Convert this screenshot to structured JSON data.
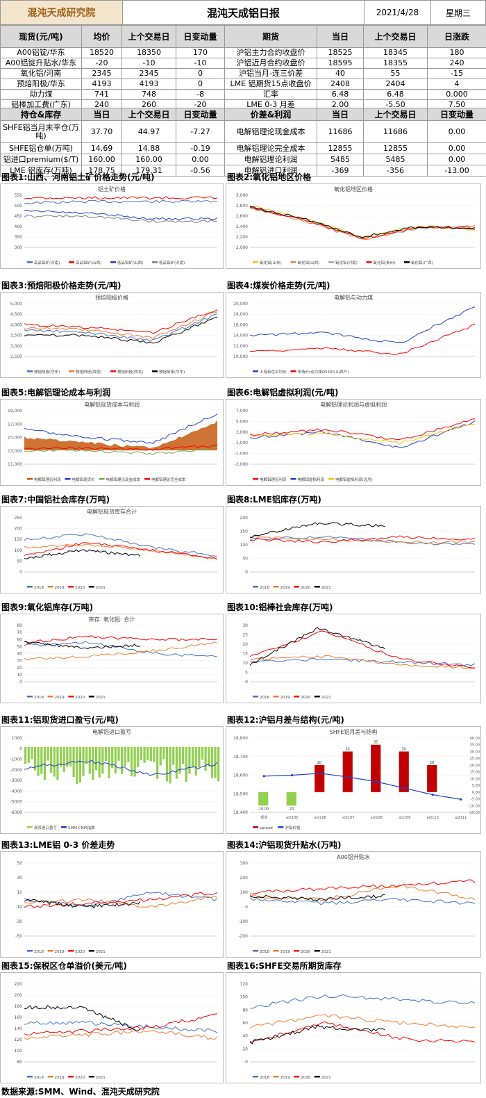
{
  "header": {
    "logo": "混沌天成研究院",
    "title": "混沌天成铝日报",
    "date": "2021/4/28",
    "weekday": "星期三"
  },
  "table1": {
    "headers": [
      "现货(元/吨)",
      "均价",
      "上个交易日",
      "日变动量",
      "期货",
      "当日",
      "上个交易日",
      "日涨跌"
    ],
    "rows": [
      [
        "A00铝锭/华东",
        "18520",
        "18350",
        "170",
        "沪铝主力合约收盘价",
        "18525",
        "18345",
        "180"
      ],
      [
        "A00铝锭升贴水/华东",
        "-20",
        "-10",
        "-10",
        "沪铝近月合约收盘价",
        "18595",
        "18355",
        "240"
      ],
      [
        "氧化铝/河南",
        "2345",
        "2345",
        "0",
        "沪铝当月-连三价差",
        "40",
        "55",
        "-15"
      ],
      [
        "预焙阳极/华东",
        "4193",
        "4193",
        "0",
        "LME 铝期货15点收盘价",
        "2408",
        "2404",
        "4"
      ],
      [
        "动力煤",
        "741",
        "748",
        "-8",
        "汇率",
        "6.48",
        "6.48",
        "0.000"
      ],
      [
        "铝棒加工费(广东)",
        "240",
        "260",
        "-20",
        "LME 0-3 月差",
        "2.00",
        "-5.50",
        "7.50"
      ]
    ]
  },
  "table2": {
    "headers": [
      "持仓&库存",
      "当日",
      "上个交易日",
      "日变动量",
      "价差&利润",
      "当日",
      "上个交易日",
      "日变动量"
    ],
    "rows": [
      [
        "SHFE铝当月末平仓(万吨)",
        "37.70",
        "44.97",
        "-7.27",
        "电解铝理论现金成本",
        "11686",
        "11686",
        "0.00"
      ],
      [
        "SHFE铝仓单(万吨)",
        "14.69",
        "14.88",
        "-0.19",
        "电解铝理论完全成本",
        "12855",
        "12855",
        "0.00"
      ],
      [
        "铝进口premium($/T)",
        "160.00",
        "160.00",
        "0.00",
        "电解铝理论利润",
        "5485",
        "5485",
        "0.00"
      ],
      [
        "LME 铝库存(万吨)",
        "178.75",
        "179.31",
        "-0.56",
        "电解铝进口利润",
        "-369",
        "-356",
        "-13.00"
      ]
    ]
  },
  "panels": [
    {
      "title": "图表1:山西、河南铝土矿价格走势(元/吨)",
      "chart_title": "铝土矿价格",
      "y_ticks": [
        "550",
        "500",
        "450",
        "400",
        "350",
        "300"
      ],
      "legend": [
        "高品铝矿(河南)",
        "高品铝矿(山西)",
        "低品铝矿(山西)",
        "低品铝矿(河南)"
      ],
      "colors": [
        "#4472c4",
        "#ff0000",
        "#1f3fcc",
        "#7f7f7f"
      ]
    },
    {
      "title": "图表2:氧化铝地区价格",
      "chart_title": "氧化铝地区价格",
      "y_ticks": [
        "3,000",
        "2,800",
        "2,600",
        "2,400",
        "2,200",
        "2,000"
      ],
      "legend": [
        "氧化铝(山东)",
        "氧化铝(山西)",
        "氧化铝(河南)",
        "氧化铝(贵州)",
        "氧化铝(广西)"
      ],
      "colors": [
        "#ffc000",
        "#ed7d31",
        "#a5a5a5",
        "#ff0000",
        "#000000"
      ]
    },
    {
      "title": "图表3:预焙阳极价格走势(元/吨)",
      "chart_title": "预焙阳极价格",
      "y_ticks": [
        "5,000",
        "4,500",
        "4,000",
        "3,500",
        "3,000",
        "2,500"
      ],
      "legend": [
        "预焙阳极(华东)",
        "预焙阳极(西南)",
        "预焙阳极(西北)",
        "预焙阳极(华中)"
      ],
      "colors": [
        "#4472c4",
        "#ed7d31",
        "#ff0000",
        "#000000"
      ]
    },
    {
      "title": "图表4:煤炭价格走势(元/吨)",
      "chart_title": "电解铝与动力煤",
      "y_ticks": [
        "20,000",
        "18,000",
        "16,000",
        "14,000",
        "12,000",
        "10,000"
      ],
      "legend": [
        "上海有色平均价",
        "市场价(动力煤Q5500,山西产)"
      ],
      "colors": [
        "#1f3fcc",
        "#ff0000"
      ]
    },
    {
      "title": "图表5:电解铝理论成本与利润",
      "chart_title": "电解铝现货成本与利润",
      "y_ticks": [
        "19,000",
        "17,000",
        "15,000",
        "13,000",
        "11,000"
      ],
      "legend": [
        "电解铝理论利润",
        "电解铝现货价",
        "电解铝理论现金成本",
        "电解铝理论完全成本"
      ],
      "colors": [
        "#c55a11",
        "#1f3fcc",
        "#70ad47",
        "#ff0000"
      ]
    },
    {
      "title": "图表6:电解铝虚拟利润(元/吨)",
      "chart_title": "电解铝理论利润与虚拟利润",
      "y_ticks": [
        "7,000",
        "5,000",
        "3,000",
        "1,000",
        "-1,000",
        "-3,000"
      ],
      "legend": [
        "电解铝理论利润",
        "电解铝虚拟利润",
        "电解铝虚拟利润(远月)"
      ],
      "colors": [
        "#ff0000",
        "#1f3fcc",
        "#ffc000"
      ]
    },
    {
      "title": "图表7:中国铝社会库存(万吨)",
      "chart_title": "电解铝现货库存合计",
      "y_ticks": [
        "250",
        "200",
        "150",
        "100",
        "50",
        "0"
      ],
      "legend": [
        "2018",
        "2019",
        "2020",
        "2021"
      ],
      "colors": [
        "#4472c4",
        "#ed7d31",
        "#ff0000",
        "#000000"
      ]
    },
    {
      "title": "图表8:LME铝库存(万吨)",
      "chart_title": "",
      "y_ticks": [
        "200",
        "150",
        "100",
        "50",
        "0"
      ],
      "legend": [
        "2018",
        "2019",
        "2020",
        "2021"
      ],
      "colors": [
        "#4472c4",
        "#ed7d31",
        "#ff0000",
        "#000000"
      ]
    },
    {
      "title": "图表9:氧化铝库存(万吨)",
      "chart_title": "库存: 氧化铝: 合计",
      "y_ticks": [
        "80",
        "70",
        "60",
        "50",
        "40",
        "30",
        "20",
        "10",
        "0"
      ],
      "legend": [
        "2018",
        "2019",
        "2020",
        "2021"
      ],
      "colors": [
        "#4472c4",
        "#ed7d31",
        "#ff0000",
        "#000000"
      ]
    },
    {
      "title": "图表10:铝棒社会库存(万吨)",
      "chart_title": "",
      "y_ticks": [
        "30",
        "25",
        "20",
        "15",
        "10",
        "5",
        "0"
      ],
      "legend": [
        "2018",
        "2019",
        "2020",
        "2021"
      ],
      "colors": [
        "#4472c4",
        "#ed7d31",
        "#ff0000",
        "#000000"
      ]
    },
    {
      "title": "图表11:铝现货进口盈亏(元/吨)",
      "chart_title": "电解铝进口盈亏",
      "y_ticks": [
        "1000",
        "0",
        "-1000",
        "-2000",
        "-3000",
        "-4000",
        "-5000",
        "-6000"
      ],
      "legend": [
        "现货进口盈亏",
        "SMM CNPI指数"
      ],
      "colors": [
        "#92d050",
        "#1f3fcc"
      ]
    },
    {
      "title": "图表12:沪铝月差与结构(元/吨)",
      "chart_title": "SHFE铝月差与结构",
      "y_ticks": [
        "18,800",
        "18,700",
        "18,600",
        "18,500",
        "18,400"
      ],
      "legend": [
        "spread",
        "沪铝价格"
      ],
      "colors": [
        "#c00000",
        "#1f3fcc"
      ]
    },
    {
      "title": "图表13:LME铝 0-3 价差走势",
      "chart_title": "",
      "y_ticks": [
        "50",
        "30",
        "10",
        "-10",
        "-30",
        "-50"
      ],
      "legend": [
        "2018",
        "2019",
        "2020",
        "2021"
      ],
      "colors": [
        "#4472c4",
        "#ed7d31",
        "#ff0000",
        "#000000"
      ]
    },
    {
      "title": "图表14:沪铝现货升贴水(万吨)",
      "chart_title": "A00铝升贴水",
      "y_ticks": [
        "300",
        "200",
        "100",
        "0",
        "-100",
        "-200"
      ],
      "legend": [
        "2018",
        "2019",
        "2020",
        "2021"
      ],
      "colors": [
        "#4472c4",
        "#ed7d31",
        "#ff0000",
        "#000000"
      ]
    },
    {
      "title": "图表15:保税区仓单溢价(美元/吨)",
      "chart_title": "",
      "y_ticks": [
        "220",
        "200",
        "180",
        "160",
        "140",
        "120",
        "100",
        "80"
      ],
      "legend": [
        "2018",
        "2019",
        "2020",
        "2021"
      ],
      "colors": [
        "#4472c4",
        "#ed7d31",
        "#ff0000",
        "#000000"
      ]
    },
    {
      "title": "图表16:SHFE交易所期货库存",
      "chart_title": "",
      "y_ticks": [
        "120",
        "100",
        "80",
        "60",
        "40",
        "20",
        "0"
      ],
      "legend": [
        "2018",
        "2019",
        "2020",
        "2021"
      ],
      "colors": [
        "#4472c4",
        "#ed7d31",
        "#ff0000",
        "#000000"
      ]
    }
  ],
  "chart12": {
    "categories": [
      "现货",
      "al2105",
      "al2106",
      "al2107",
      "al2108",
      "al2109",
      "al2110",
      "al2111"
    ],
    "spread": [
      -10,
      -10,
      20,
      30,
      35,
      30,
      20,
      null
    ],
    "spread_labels": [
      "-10.00",
      "-10",
      "20",
      "30",
      "35",
      "30",
      "20",
      ""
    ],
    "price": [
      18595,
      18600,
      18610,
      18590,
      18565,
      18530,
      18495,
      18470
    ],
    "y2_ticks": [
      "40.00",
      "35.00",
      "30.00",
      "25.00",
      "20.00",
      "15.00",
      "10.00",
      "5.00",
      "0.00",
      "-5.00",
      "-10.00",
      "-15.00"
    ]
  },
  "footer": "数据来源:SMM、Wind、混沌天成研究院"
}
